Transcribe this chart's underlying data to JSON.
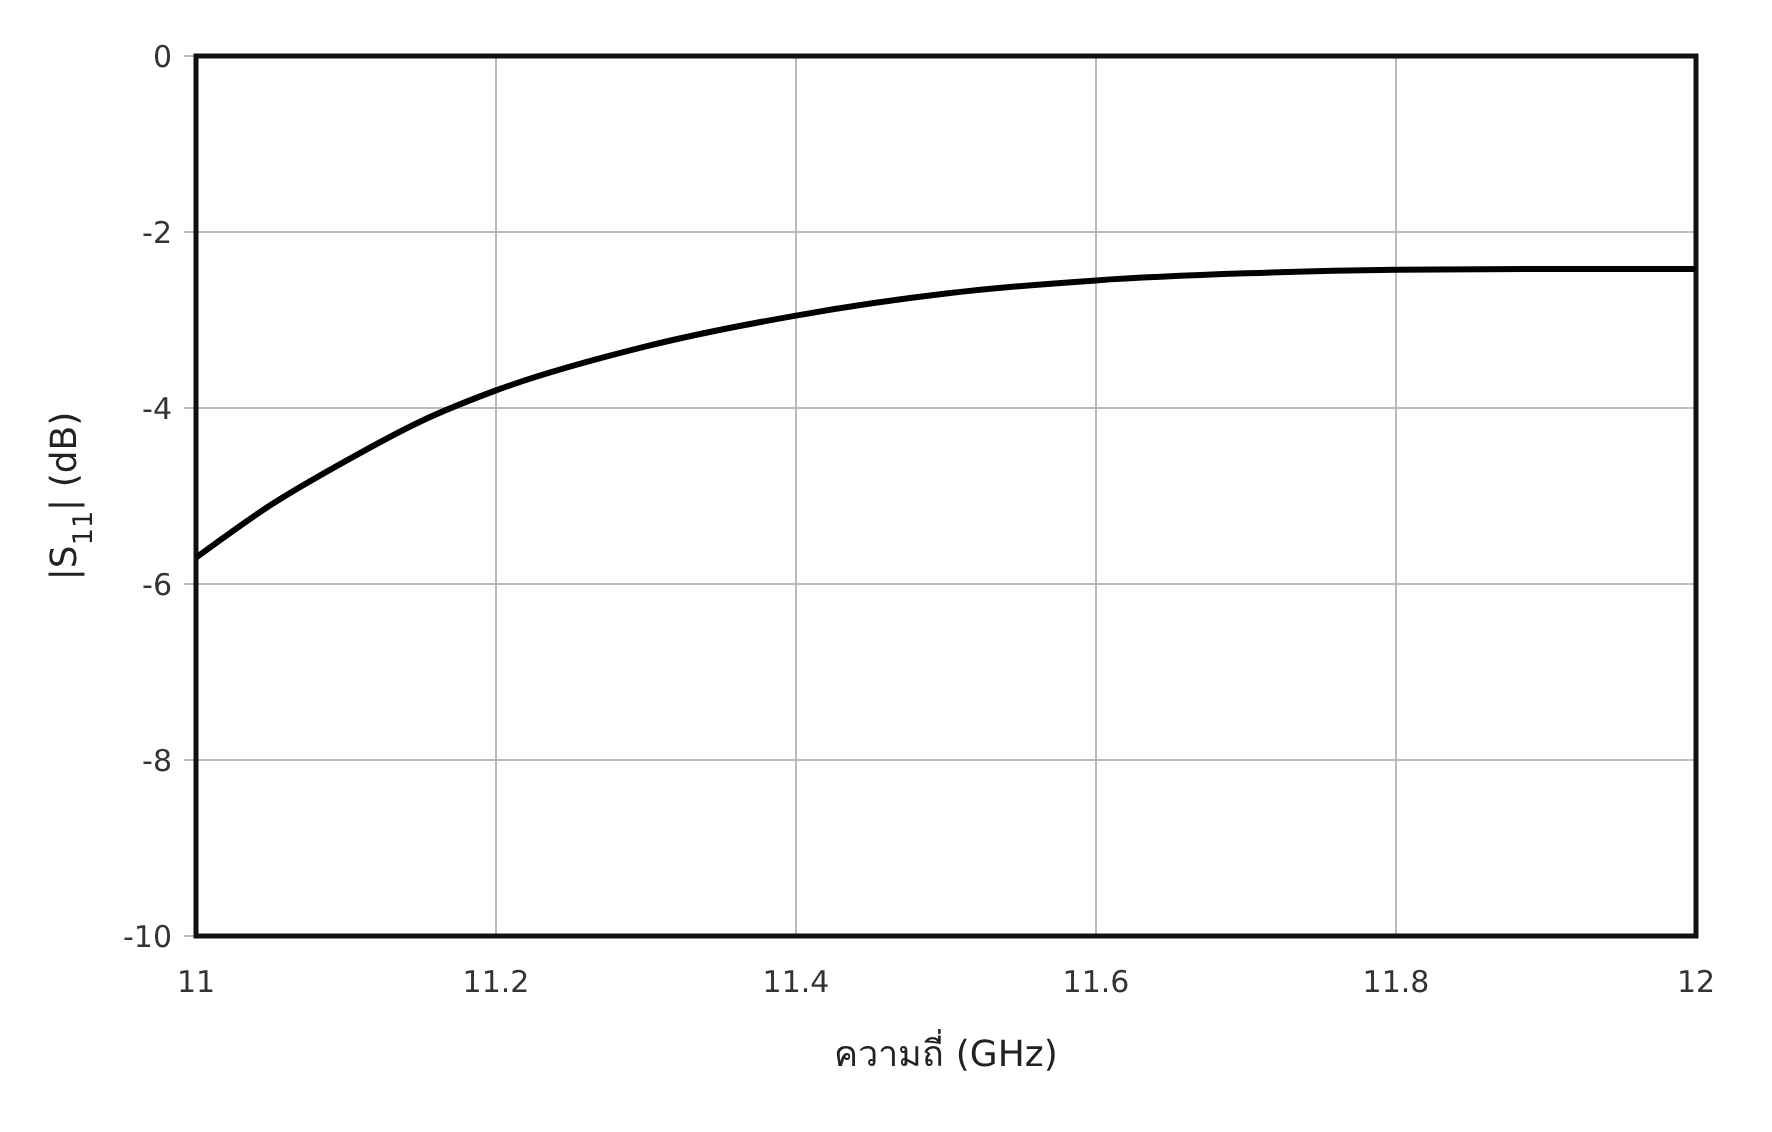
{
  "chart_data": {
    "type": "line",
    "xlabel": "ความถี่ (GHz)",
    "ylabel": "|S$_{11}$| (dB)",
    "x": [
      11.0,
      11.05,
      11.1,
      11.15,
      11.2,
      11.3,
      11.4,
      11.5,
      11.6,
      11.7,
      11.8,
      11.9,
      12.0
    ],
    "series": [
      {
        "color": "#000000",
        "values": [
          -5.7,
          -5.1,
          -4.6,
          -4.15,
          -3.8,
          -3.3,
          -2.95,
          -2.7,
          -2.55,
          -2.47,
          -2.43,
          -2.42,
          -2.42
        ]
      }
    ],
    "xlim": [
      11,
      12
    ],
    "xticks": [
      11,
      11.2,
      11.4,
      11.6,
      11.8,
      12
    ],
    "ylim": [
      -10,
      0
    ],
    "yticks": [
      -10,
      -8,
      -6,
      -4,
      -2,
      0
    ],
    "grid": true,
    "marker": "none",
    "line_style": "solid"
  }
}
